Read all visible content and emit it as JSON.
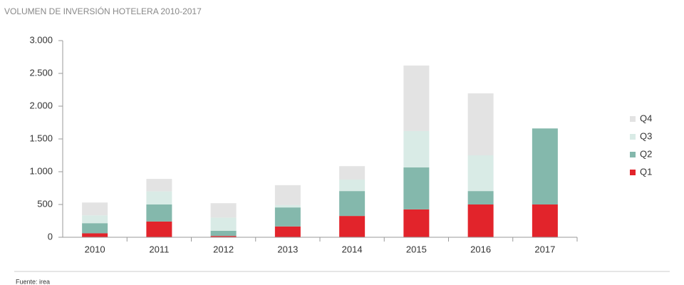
{
  "chart_data": {
    "type": "stacked_bar",
    "title": "VOLUMEN DE INVERSIÓN HOTELERA 2010-2017",
    "source": "Fuente: irea",
    "categories": [
      "2010",
      "2011",
      "2012",
      "2013",
      "2014",
      "2015",
      "2016",
      "2017"
    ],
    "series": [
      {
        "name": "Q1",
        "color": "#e2242b",
        "values": [
          60,
          240,
          20,
          165,
          325,
          425,
          500,
          500
        ]
      },
      {
        "name": "Q2",
        "color": "#84b8ac",
        "values": [
          155,
          260,
          80,
          290,
          380,
          640,
          205,
          1160
        ]
      },
      {
        "name": "Q3",
        "color": "#d9ebe6",
        "values": [
          120,
          200,
          200,
          35,
          175,
          555,
          545,
          null
        ]
      },
      {
        "name": "Q4",
        "color": "#e3e3e3",
        "values": [
          195,
          190,
          220,
          305,
          205,
          1000,
          945,
          null
        ]
      }
    ],
    "ylim": [
      0,
      3000
    ],
    "yticks": [
      0,
      500,
      {
        "value": 1000,
        "label": "1.000"
      },
      {
        "value": 1500,
        "label": "1.500"
      },
      {
        "value": 2000,
        "label": "2.000"
      },
      {
        "value": 2500,
        "label": "2.500"
      },
      {
        "value": 3000,
        "label": "3.000"
      }
    ],
    "grid": false
  }
}
